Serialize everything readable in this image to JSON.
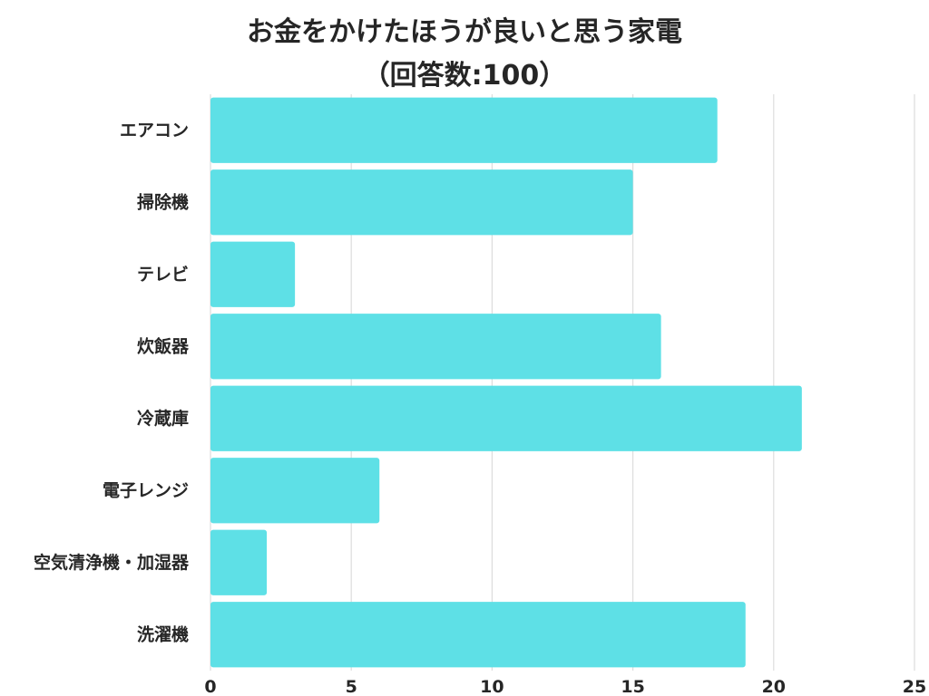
{
  "chart_data": {
    "type": "bar",
    "orientation": "horizontal",
    "title": "お金をかけたほうが良いと思う家電",
    "subtitle": "（回答数:100）",
    "categories": [
      "エアコン",
      "掃除機",
      "テレビ",
      "炊飯器",
      "冷蔵庫",
      "電子レンジ",
      "空気清浄機・加湿器",
      "洗濯機"
    ],
    "values": [
      18,
      15,
      3,
      16,
      21,
      6,
      2,
      19
    ],
    "xlim": [
      0,
      25
    ],
    "xticks": [
      0,
      5,
      10,
      15,
      20,
      25
    ],
    "grid": true,
    "bar_color": "#5ee0e6",
    "grid_color": "#dddddd"
  }
}
